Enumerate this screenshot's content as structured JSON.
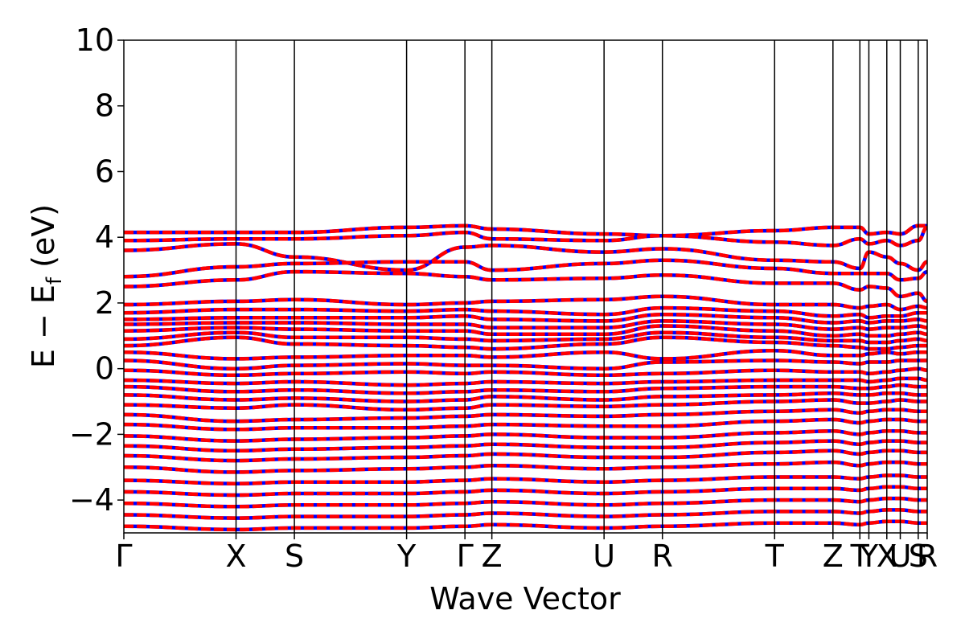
{
  "chart_data": {
    "type": "line",
    "title": "",
    "xlabel": "Wave Vector",
    "ylabel": "E − E_f (eV)",
    "ylabel_main": "E − E",
    "ylabel_sub": "f",
    "ylabel_unit": " (eV)",
    "ylim": [
      -5,
      10
    ],
    "yticks": [
      {
        "value": -4,
        "label": "−4"
      },
      {
        "value": -2,
        "label": "−2"
      },
      {
        "value": 0,
        "label": "0"
      },
      {
        "value": 2,
        "label": "2"
      },
      {
        "value": 4,
        "label": "4"
      },
      {
        "value": 6,
        "label": "6"
      },
      {
        "value": 8,
        "label": "8"
      },
      {
        "value": 10,
        "label": "10"
      }
    ],
    "xlim": [
      0,
      3.58
    ],
    "kpath": [
      {
        "label": "Γ",
        "x": 0.0
      },
      {
        "label": "X",
        "x": 0.5
      },
      {
        "label": "S",
        "x": 0.76
      },
      {
        "label": "Y",
        "x": 1.26
      },
      {
        "label": "Γ",
        "x": 1.52
      },
      {
        "label": "Z",
        "x": 1.64
      },
      {
        "label": "U",
        "x": 2.14
      },
      {
        "label": "R",
        "x": 2.4
      },
      {
        "label": "T",
        "x": 2.9
      },
      {
        "label": "Z",
        "x": 3.16
      },
      {
        "label": "T",
        "x": 3.28
      },
      {
        "label": "Y",
        "x": 3.32
      },
      {
        "label": "X",
        "x": 3.4
      },
      {
        "label": "U",
        "x": 3.46
      },
      {
        "label": "S",
        "x": 3.54
      },
      {
        "label": "R",
        "x": 3.58
      }
    ],
    "grid": false,
    "legend": "none",
    "series": [
      {
        "style": "solid",
        "color": "#0000ff",
        "bands": [
          [
            4.15,
            4.15,
            4.15,
            4.3,
            4.35,
            4.25,
            4.1,
            4.05,
            4.2,
            4.3,
            4.3,
            4.1,
            4.15,
            4.1,
            4.35,
            4.35
          ],
          [
            3.9,
            3.95,
            3.95,
            4.05,
            4.15,
            3.95,
            3.9,
            4.05,
            3.85,
            3.75,
            3.95,
            3.8,
            3.9,
            3.75,
            3.9,
            4.3
          ],
          [
            3.6,
            3.8,
            3.4,
            3.0,
            3.7,
            3.75,
            3.55,
            3.65,
            3.3,
            3.25,
            3.05,
            3.55,
            3.4,
            3.2,
            3.0,
            3.25
          ],
          [
            2.8,
            3.1,
            3.2,
            3.25,
            3.25,
            3.0,
            3.2,
            3.3,
            3.05,
            2.9,
            2.9,
            2.9,
            2.9,
            2.7,
            2.75,
            2.95
          ],
          [
            2.5,
            2.7,
            2.95,
            2.9,
            2.8,
            2.7,
            2.75,
            2.85,
            2.6,
            2.6,
            2.4,
            2.5,
            2.45,
            2.2,
            2.3,
            2.05
          ],
          [
            1.95,
            2.05,
            2.1,
            1.95,
            2.0,
            2.05,
            2.1,
            2.2,
            1.95,
            1.95,
            1.85,
            1.9,
            1.95,
            1.8,
            1.9,
            1.85
          ],
          [
            1.7,
            1.8,
            1.8,
            1.75,
            1.8,
            1.75,
            1.65,
            1.85,
            1.75,
            1.6,
            1.65,
            1.55,
            1.6,
            1.6,
            1.7,
            1.7
          ],
          [
            1.5,
            1.55,
            1.55,
            1.55,
            1.6,
            1.5,
            1.45,
            1.65,
            1.55,
            1.4,
            1.45,
            1.4,
            1.45,
            1.45,
            1.5,
            1.45
          ],
          [
            1.35,
            1.4,
            1.4,
            1.35,
            1.35,
            1.25,
            1.25,
            1.45,
            1.35,
            1.2,
            1.25,
            1.2,
            1.25,
            1.25,
            1.3,
            1.25
          ],
          [
            1.15,
            1.25,
            1.2,
            1.15,
            1.15,
            1.05,
            1.05,
            1.3,
            1.15,
            1.0,
            1.05,
            1.0,
            1.0,
            1.05,
            1.1,
            1.05
          ],
          [
            0.9,
            1.1,
            0.95,
            0.95,
            0.9,
            0.85,
            0.9,
            1.1,
            0.95,
            0.85,
            0.85,
            0.8,
            0.8,
            0.85,
            0.9,
            0.85
          ],
          [
            0.7,
            0.95,
            0.75,
            0.7,
            0.65,
            0.6,
            0.75,
            0.95,
            0.8,
            0.7,
            0.65,
            0.6,
            0.6,
            0.65,
            0.7,
            0.7
          ],
          [
            0.5,
            0.3,
            0.35,
            0.4,
            0.4,
            0.35,
            0.5,
            0.3,
            0.55,
            0.4,
            0.4,
            0.45,
            0.5,
            0.45,
            0.5,
            0.5
          ],
          [
            0.25,
            0.0,
            0.1,
            0.15,
            0.1,
            0.1,
            0.0,
            0.2,
            0.25,
            0.2,
            0.15,
            0.2,
            0.2,
            0.25,
            0.25,
            0.25
          ],
          [
            -0.05,
            -0.2,
            -0.15,
            -0.1,
            -0.15,
            -0.1,
            -0.2,
            -0.15,
            -0.05,
            -0.1,
            -0.1,
            -0.15,
            -0.1,
            -0.05,
            0.0,
            -0.05
          ],
          [
            -0.35,
            -0.45,
            -0.4,
            -0.5,
            -0.45,
            -0.4,
            -0.45,
            -0.4,
            -0.35,
            -0.35,
            -0.35,
            -0.4,
            -0.35,
            -0.3,
            -0.3,
            -0.35
          ],
          [
            -0.55,
            -0.7,
            -0.65,
            -0.75,
            -0.7,
            -0.65,
            -0.7,
            -0.6,
            -0.55,
            -0.55,
            -0.6,
            -0.6,
            -0.55,
            -0.5,
            -0.55,
            -0.55
          ],
          [
            -0.8,
            -0.95,
            -0.9,
            -1.0,
            -0.95,
            -0.85,
            -0.95,
            -0.85,
            -0.8,
            -0.75,
            -0.8,
            -0.8,
            -0.75,
            -0.75,
            -0.8,
            -0.8
          ],
          [
            -1.1,
            -1.2,
            -1.1,
            -1.25,
            -1.2,
            -1.1,
            -1.15,
            -1.1,
            -1.0,
            -0.95,
            -1.05,
            -1.05,
            -1.0,
            -0.95,
            -1.0,
            -1.0
          ],
          [
            -1.4,
            -1.6,
            -1.55,
            -1.5,
            -1.45,
            -1.4,
            -1.45,
            -1.4,
            -1.3,
            -1.25,
            -1.35,
            -1.3,
            -1.25,
            -1.25,
            -1.3,
            -1.3
          ],
          [
            -1.7,
            -1.85,
            -1.8,
            -1.8,
            -1.75,
            -1.7,
            -1.75,
            -1.75,
            -1.6,
            -1.55,
            -1.65,
            -1.6,
            -1.55,
            -1.55,
            -1.6,
            -1.6
          ],
          [
            -2.05,
            -2.2,
            -2.15,
            -2.1,
            -2.05,
            -2.0,
            -2.1,
            -2.1,
            -1.95,
            -1.9,
            -2.0,
            -1.95,
            -1.9,
            -1.9,
            -1.95,
            -1.95
          ],
          [
            -2.35,
            -2.5,
            -2.45,
            -2.4,
            -2.35,
            -2.3,
            -2.4,
            -2.4,
            -2.25,
            -2.2,
            -2.3,
            -2.25,
            -2.2,
            -2.2,
            -2.25,
            -2.25
          ],
          [
            -2.65,
            -2.8,
            -2.75,
            -2.7,
            -2.65,
            -2.6,
            -2.7,
            -2.7,
            -2.55,
            -2.5,
            -2.6,
            -2.55,
            -2.5,
            -2.5,
            -2.55,
            -2.55
          ],
          [
            -3.0,
            -3.15,
            -3.1,
            -3.05,
            -3.0,
            -2.95,
            -3.05,
            -3.0,
            -2.9,
            -2.85,
            -2.95,
            -2.9,
            -2.85,
            -2.85,
            -2.9,
            -2.9
          ],
          [
            -3.4,
            -3.5,
            -3.45,
            -3.45,
            -3.4,
            -3.35,
            -3.45,
            -3.4,
            -3.3,
            -3.3,
            -3.35,
            -3.3,
            -3.25,
            -3.25,
            -3.3,
            -3.3
          ],
          [
            -3.75,
            -3.85,
            -3.8,
            -3.8,
            -3.75,
            -3.7,
            -3.8,
            -3.75,
            -3.65,
            -3.65,
            -3.7,
            -3.65,
            -3.6,
            -3.6,
            -3.65,
            -3.65
          ],
          [
            -4.1,
            -4.2,
            -4.15,
            -4.15,
            -4.1,
            -4.05,
            -4.15,
            -4.1,
            -4.0,
            -4.0,
            -4.05,
            -4.0,
            -3.95,
            -3.95,
            -4.0,
            -4.0
          ],
          [
            -4.45,
            -4.55,
            -4.5,
            -4.5,
            -4.45,
            -4.4,
            -4.5,
            -4.45,
            -4.35,
            -4.35,
            -4.4,
            -4.35,
            -4.3,
            -4.3,
            -4.35,
            -4.35
          ],
          [
            -4.8,
            -4.9,
            -4.85,
            -4.85,
            -4.8,
            -4.75,
            -4.85,
            -4.8,
            -4.7,
            -4.7,
            -4.75,
            -4.7,
            -4.65,
            -4.65,
            -4.7,
            -4.7
          ]
        ]
      },
      {
        "style": "dashed",
        "color": "#ff0000",
        "bands": "same-as-solid"
      }
    ]
  }
}
